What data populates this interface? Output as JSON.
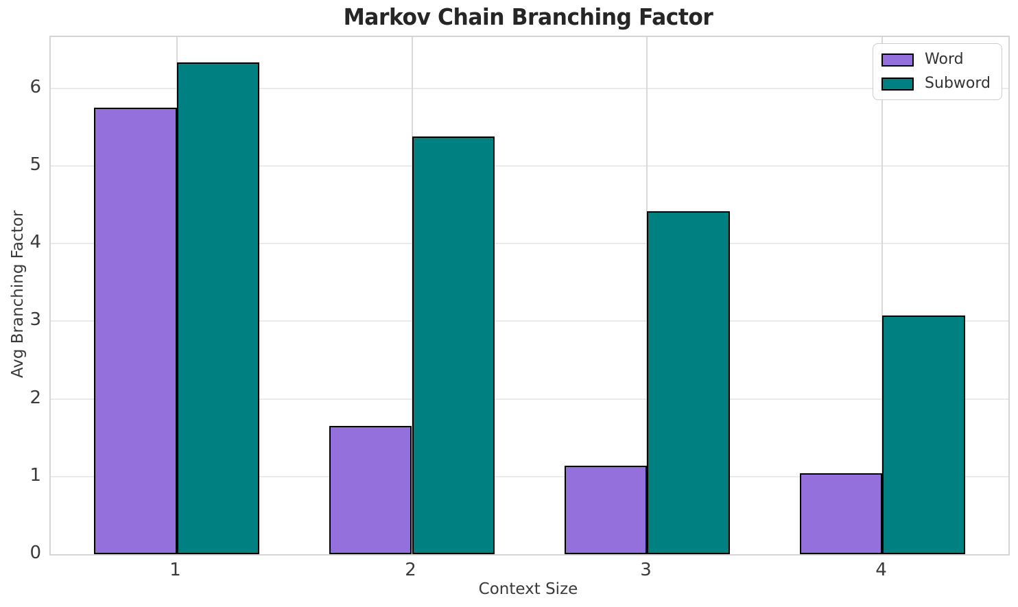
{
  "chart_data": {
    "type": "bar",
    "title": "Markov Chain Branching Factor",
    "xlabel": "Context Size",
    "ylabel": "Avg Branching Factor",
    "categories": [
      "1",
      "2",
      "3",
      "4"
    ],
    "x_positions": [
      1,
      2,
      3,
      4
    ],
    "series": [
      {
        "name": "Word",
        "color": "#9370DB",
        "values": [
          5.75,
          1.65,
          1.14,
          1.04
        ]
      },
      {
        "name": "Subword",
        "color": "#008080",
        "values": [
          6.33,
          5.38,
          4.42,
          3.07
        ]
      }
    ],
    "bar_width": 0.35,
    "bar_edge_color": "#000000",
    "ylim": [
      0,
      6.66
    ],
    "xlim": [
      0.465,
      4.535
    ],
    "yticks": [
      0,
      1,
      2,
      3,
      4,
      5,
      6
    ],
    "grid": true,
    "legend": {
      "position": "upper right",
      "entries": [
        "Word",
        "Subword"
      ]
    },
    "colors": {
      "background": "#ffffff",
      "grid_horizontal": "#ebebeb",
      "grid_vertical": "#d9d9d9",
      "spine": "#d4d4d4",
      "tick_text": "#3a3a3a",
      "title_text": "#262626"
    }
  }
}
